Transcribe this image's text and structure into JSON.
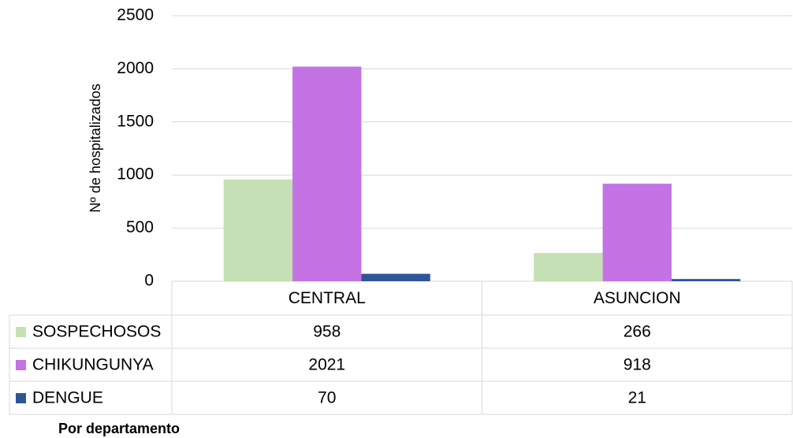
{
  "chart_data": {
    "type": "bar",
    "y_label": "Nº de hospitalizados",
    "caption": "Por departamento",
    "categories": [
      "CENTRAL",
      "ASUNCION"
    ],
    "series": [
      {
        "name": "SOSPECHOSOS",
        "color": "#c5e0b4",
        "values": [
          958,
          266
        ]
      },
      {
        "name": "CHIKUNGUNYA",
        "color": "#c373e3",
        "values": [
          2021,
          918
        ]
      },
      {
        "name": "DENGUE",
        "color": "#2f5597",
        "values": [
          70,
          21
        ]
      }
    ],
    "ylim": [
      0,
      2500
    ],
    "yticks": [
      0,
      500,
      1000,
      1500,
      2000,
      2500
    ],
    "grid": true
  }
}
